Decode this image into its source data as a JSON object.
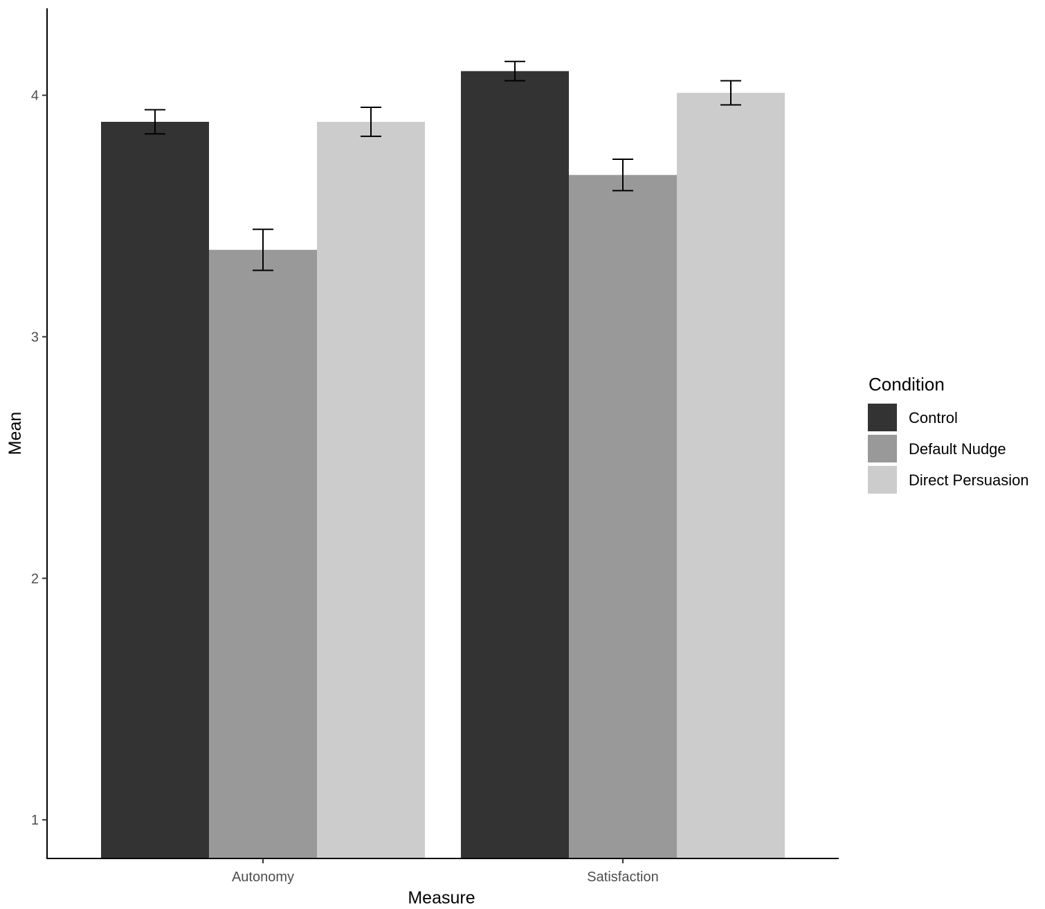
{
  "chart_data": {
    "type": "bar",
    "xlabel": "Measure",
    "ylabel": "Mean",
    "categories": [
      "Autonomy",
      "Satisfaction"
    ],
    "series": [
      {
        "name": "Control",
        "color": "#333333",
        "values": [
          3.89,
          4.1
        ],
        "error": [
          0.05,
          0.04
        ]
      },
      {
        "name": "Default Nudge",
        "color": "#999999",
        "values": [
          3.36,
          3.67
        ],
        "error": [
          0.085,
          0.065
        ]
      },
      {
        "name": "Direct Persuasion",
        "color": "#cccccc",
        "values": [
          3.89,
          4.01
        ],
        "error": [
          0.06,
          0.05
        ]
      }
    ],
    "ylim": [
      0.84,
      4.36
    ],
    "yticks": [
      "1",
      "2",
      "3",
      "4"
    ],
    "grid": false,
    "legend": {
      "title": "Condition",
      "placement": "right"
    }
  }
}
